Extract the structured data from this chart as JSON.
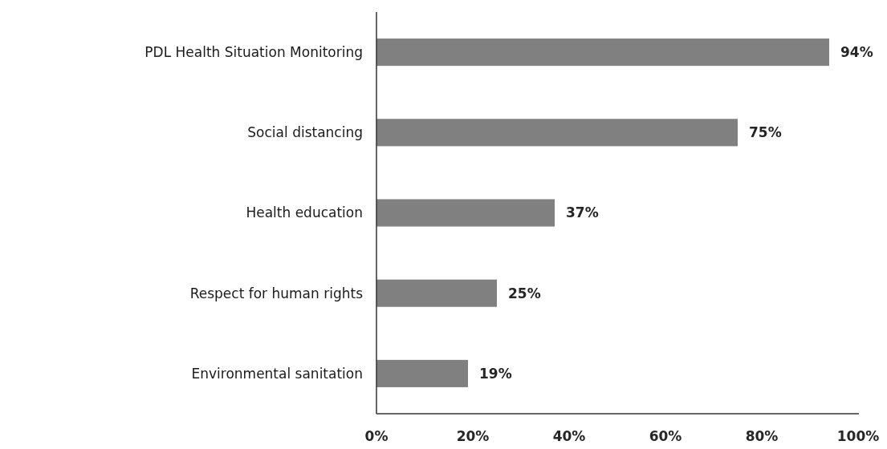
{
  "chart_data": {
    "type": "bar",
    "orientation": "horizontal",
    "categories": [
      "PDL Health Situation Monitoring",
      "Social distancing",
      "Health education",
      "Respect for human rights",
      "Environmental sanitation"
    ],
    "values": [
      94,
      75,
      37,
      25,
      19
    ],
    "value_labels": [
      "94%",
      "75%",
      "37%",
      "25%",
      "19%"
    ],
    "color": "#808080",
    "xlim": [
      0,
      100
    ],
    "xticks": [
      {
        "value": 0,
        "label": "0%"
      },
      {
        "value": 20,
        "label": "20%"
      },
      {
        "value": 40,
        "label": "40%"
      },
      {
        "value": 60,
        "label": "60%"
      },
      {
        "value": 80,
        "label": "80%"
      },
      {
        "value": 100,
        "label": "100%"
      }
    ],
    "grid": false
  }
}
